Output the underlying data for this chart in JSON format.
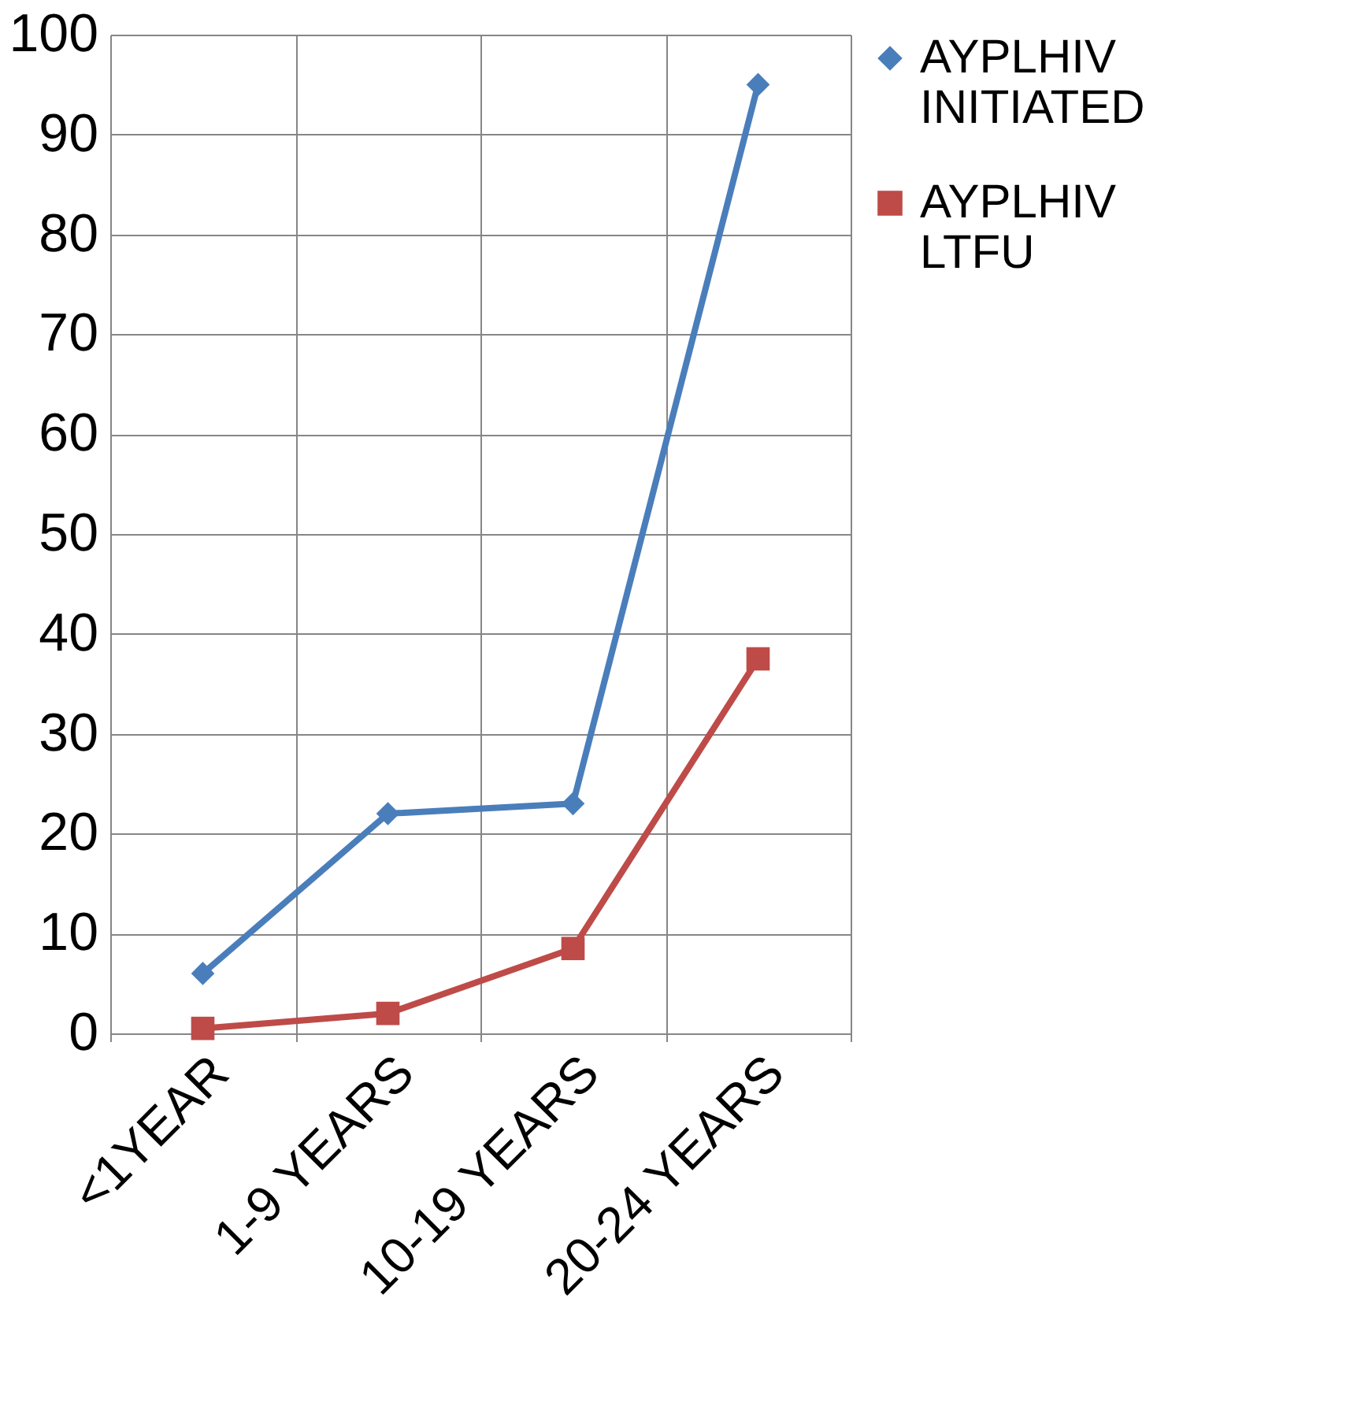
{
  "chart_data": {
    "type": "line",
    "categories": [
      "<1YEAR",
      "1-9 YEARS",
      "10-19 YEARS",
      "20-24 YEARS"
    ],
    "series": [
      {
        "name": "AYPLHIV INITIATED",
        "color": "#4a7ebb",
        "marker": "diamond",
        "values": [
          6,
          22,
          23,
          95
        ]
      },
      {
        "name": "AYPLHIV LTFU",
        "color": "#be4b48",
        "marker": "square",
        "values": [
          0.5,
          2,
          8.5,
          37.5
        ]
      }
    ],
    "ylim": [
      0,
      100
    ],
    "yticks": [
      0,
      10,
      20,
      30,
      40,
      50,
      60,
      70,
      80,
      90,
      100
    ],
    "grid": true,
    "legend": "right",
    "line_style": "solid"
  }
}
